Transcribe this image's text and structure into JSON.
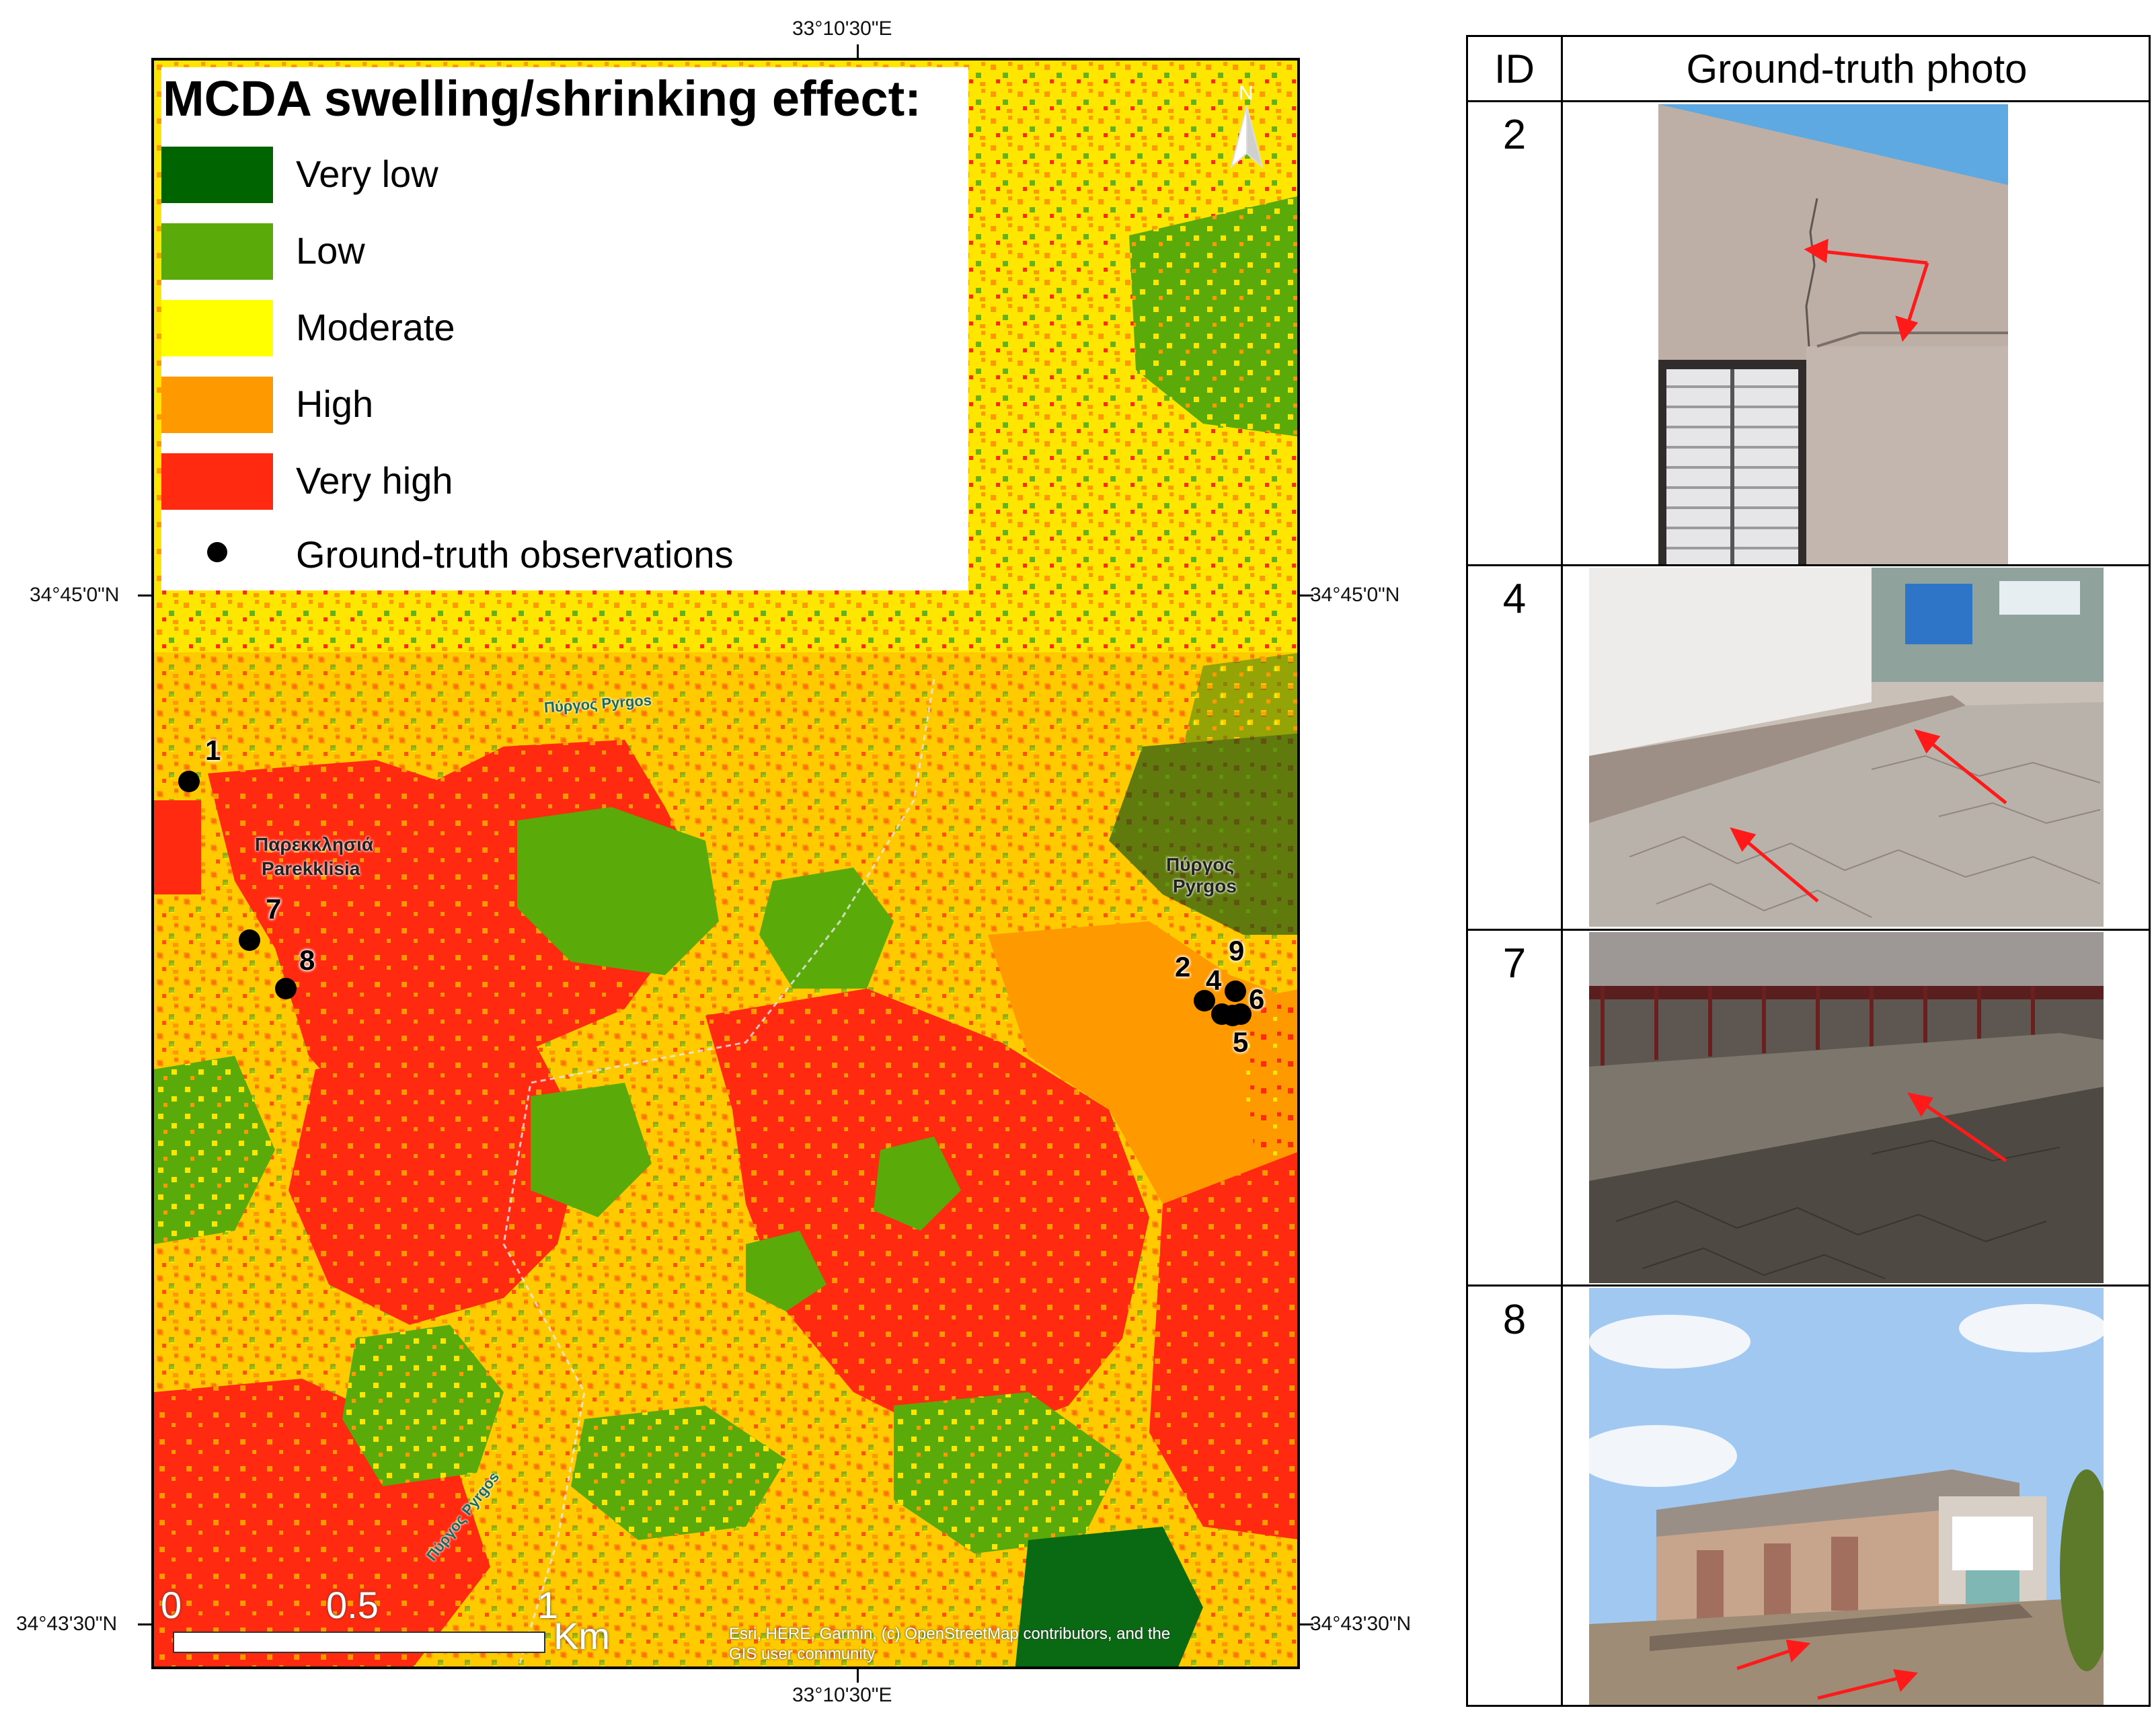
{
  "map": {
    "title": "MCDA swelling/shrinking effect:",
    "coords": {
      "top_lon": "33°10'30\"E",
      "bottom_lon": "33°10'30\"E",
      "left_lat_upper": "34°45'0\"N",
      "right_lat_upper": "34°45'0\"N",
      "left_lat_lower": "34°43'30\"N",
      "right_lat_lower": "34°43'30\"N"
    },
    "legend": [
      {
        "label": "Very low",
        "color": "#006400"
      },
      {
        "label": "Low",
        "color": "#5aaa0a"
      },
      {
        "label": "Moderate",
        "color": "#ffff00"
      },
      {
        "label": "High",
        "color": "#ff9900"
      },
      {
        "label": "Very high",
        "color": "#ff2a0f"
      }
    ],
    "legend_points_label": "Ground-truth observations",
    "north_label": "N",
    "places": {
      "parekklisia_gr": "Παρεκκλησιά",
      "parekklisia_en": "Parekklisia",
      "pyrgos_gr": "Πύργος",
      "pyrgos_en": "Pyrgos",
      "road_top": "Πύργος Pyrgos",
      "road_bottom": "Πύργος Pyrgos"
    },
    "observations": [
      "1",
      "2",
      "4",
      "5",
      "6",
      "7",
      "8",
      "9"
    ],
    "scalebar": {
      "l0": "0",
      "l05": "0.5",
      "l1": "1",
      "unit": "Km"
    },
    "attribution_line1": "Esri, HERE, Garmin, (c) OpenStreetMap contributors, and the",
    "attribution_line2": "GIS user community"
  },
  "table": {
    "header_id": "ID",
    "header_photo": "Ground-truth photo",
    "rows": [
      {
        "id": "2",
        "photo": "wall-crack-photo"
      },
      {
        "id": "4",
        "photo": "pavement-crack-photo"
      },
      {
        "id": "7",
        "photo": "terrace-crack-photo"
      },
      {
        "id": "8",
        "photo": "building-foundation-photo"
      }
    ]
  }
}
